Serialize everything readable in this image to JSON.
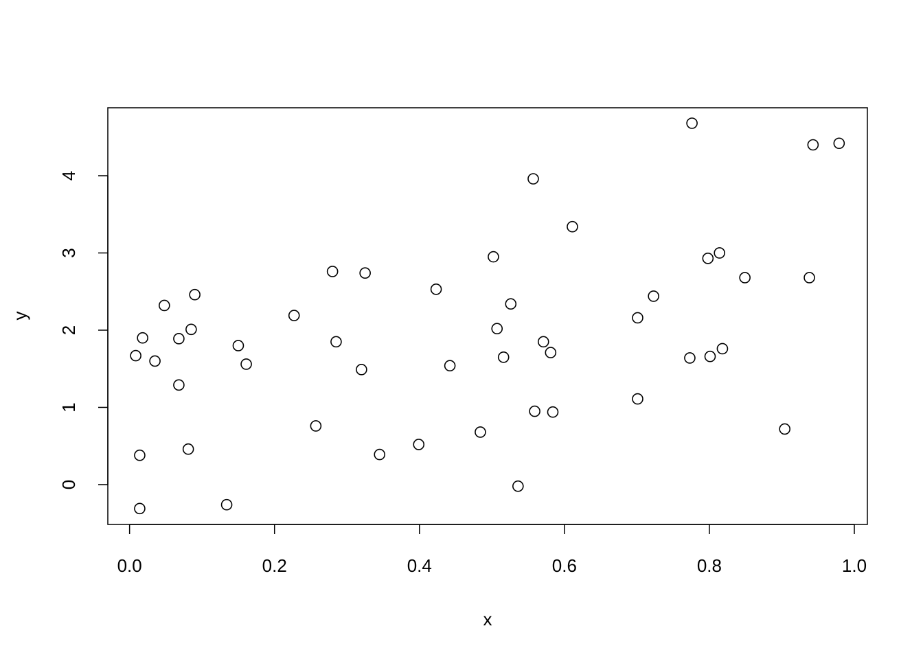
{
  "chart_data": {
    "type": "scatter",
    "title": "",
    "xlabel": "x",
    "ylabel": "y",
    "xlim": [
      -0.03,
      1.018
    ],
    "ylim": [
      -0.516,
      4.88
    ],
    "grid": false,
    "x_ticks": [
      0.0,
      0.2,
      0.4,
      0.6,
      0.8,
      1.0
    ],
    "x_tick_labels": [
      "0.0",
      "0.2",
      "0.4",
      "0.6",
      "0.8",
      "1.0"
    ],
    "y_ticks": [
      0,
      1,
      2,
      3,
      4
    ],
    "y_tick_labels": [
      "0",
      "1",
      "2",
      "3",
      "4"
    ],
    "marker": "open-circle",
    "color": "#000000",
    "points": [
      [
        0.0085,
        1.67
      ],
      [
        0.018,
        1.9
      ],
      [
        0.014,
        0.38
      ],
      [
        0.014,
        -0.31
      ],
      [
        0.035,
        1.6
      ],
      [
        0.048,
        2.32
      ],
      [
        0.068,
        1.89
      ],
      [
        0.068,
        1.29
      ],
      [
        0.081,
        0.46
      ],
      [
        0.085,
        2.01
      ],
      [
        0.09,
        2.46
      ],
      [
        0.134,
        -0.26
      ],
      [
        0.15,
        1.8
      ],
      [
        0.161,
        1.56
      ],
      [
        0.227,
        2.19
      ],
      [
        0.257,
        0.76
      ],
      [
        0.28,
        2.76
      ],
      [
        0.285,
        1.85
      ],
      [
        0.32,
        1.49
      ],
      [
        0.325,
        2.74
      ],
      [
        0.345,
        0.39
      ],
      [
        0.399,
        0.52
      ],
      [
        0.423,
        2.53
      ],
      [
        0.442,
        1.54
      ],
      [
        0.484,
        0.68
      ],
      [
        0.502,
        2.95
      ],
      [
        0.507,
        2.02
      ],
      [
        0.516,
        1.65
      ],
      [
        0.526,
        2.34
      ],
      [
        0.536,
        -0.02
      ],
      [
        0.557,
        3.96
      ],
      [
        0.559,
        0.95
      ],
      [
        0.571,
        1.85
      ],
      [
        0.581,
        1.71
      ],
      [
        0.584,
        0.94
      ],
      [
        0.611,
        3.34
      ],
      [
        0.701,
        2.16
      ],
      [
        0.701,
        1.11
      ],
      [
        0.723,
        2.44
      ],
      [
        0.773,
        1.64
      ],
      [
        0.776,
        4.68
      ],
      [
        0.798,
        2.93
      ],
      [
        0.801,
        1.66
      ],
      [
        0.814,
        3.0
      ],
      [
        0.818,
        1.76
      ],
      [
        0.849,
        2.68
      ],
      [
        0.904,
        0.72
      ],
      [
        0.938,
        2.68
      ],
      [
        0.943,
        4.4
      ],
      [
        0.979,
        4.42
      ]
    ]
  }
}
